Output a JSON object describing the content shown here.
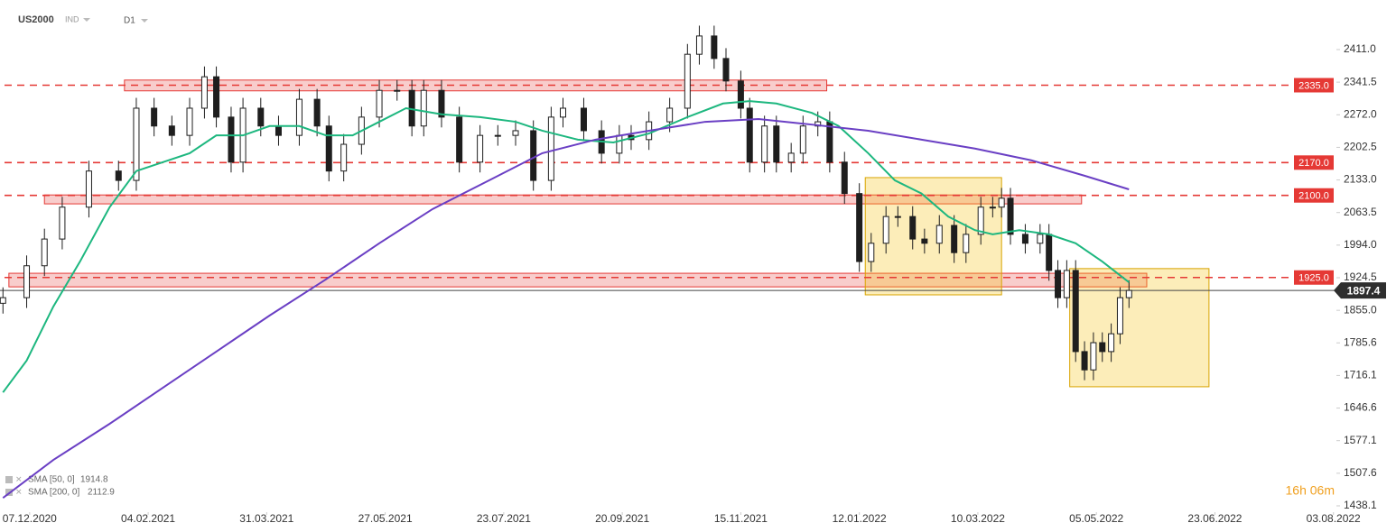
{
  "header": {
    "symbol": "US2000",
    "market": "IND",
    "interval": "D1",
    "countdown": "16h 06m"
  },
  "chart_data": {
    "type": "candlestick",
    "xlim": [
      -10,
      441
    ],
    "ylim": [
      1424.6,
      2516.7
    ],
    "xticks": [
      {
        "value": 0,
        "label": "07.12.2020"
      },
      {
        "value": 40,
        "label": "04.02.2021"
      },
      {
        "value": 80,
        "label": "31.03.2021"
      },
      {
        "value": 120,
        "label": "27.05.2021"
      },
      {
        "value": 160,
        "label": "23.07.2021"
      },
      {
        "value": 200,
        "label": "20.09.2021"
      },
      {
        "value": 240,
        "label": "15.11.2021"
      },
      {
        "value": 280,
        "label": "12.01.2022"
      },
      {
        "value": 320,
        "label": "10.03.2022"
      },
      {
        "value": 360,
        "label": "05.05.2022"
      },
      {
        "value": 400,
        "label": "23.06.2022"
      },
      {
        "value": 440,
        "label": "03.08.2022"
      }
    ],
    "yticks": [
      {
        "value": 2411.0,
        "label": "2411.0"
      },
      2341.5,
      {
        "value": 2272.0,
        "label": "2272.0"
      },
      2202.5,
      {
        "value": 2133.0,
        "label": "2133.0"
      },
      2063.5,
      {
        "value": 1994.0,
        "label": "1994.0"
      },
      1924.5,
      {
        "value": 1855.0,
        "label": "1855.0"
      },
      1785.6,
      1716.1,
      1646.6,
      1577.1,
      1507.6,
      1438.1
    ],
    "up_color": "#ffffff",
    "down_color": "#1e1e1e",
    "candles": {
      "x": [
        -9,
        -1,
        5,
        11,
        20,
        30,
        36,
        42,
        48,
        54,
        59,
        63,
        68,
        72,
        78,
        84,
        91,
        97,
        101,
        106,
        112,
        118,
        124,
        129,
        133,
        139,
        145,
        152,
        158,
        164,
        170,
        176,
        180,
        187,
        193,
        199,
        203,
        209,
        216,
        222,
        226,
        231,
        235,
        240,
        243,
        248,
        252,
        257,
        261,
        266,
        270,
        275,
        280,
        284,
        289,
        293,
        298,
        302,
        307,
        312,
        316,
        321,
        325,
        328,
        331,
        336,
        341,
        344,
        347,
        350,
        353,
        356,
        359,
        362,
        365,
        368,
        371
      ],
      "open": [
        1870,
        1882,
        1950,
        2007,
        2075,
        2152,
        2132,
        2286,
        2248,
        2228,
        2286,
        2353,
        2267,
        2171,
        2286,
        2248,
        2228,
        2305,
        2248,
        2152,
        2209,
        2267,
        2324,
        2324,
        2248,
        2324,
        2267,
        2171,
        2228,
        2228,
        2238,
        2132,
        2267,
        2286,
        2238,
        2190,
        2228,
        2219,
        2257,
        2286,
        2401,
        2440,
        2392,
        2344,
        2286,
        2171,
        2248,
        2171,
        2190,
        2248,
        2257,
        2171,
        2104,
        1959,
        1998,
        2055,
        2055,
        2007,
        1998,
        2036,
        1978,
        2017,
        2075,
        2075,
        2094,
        2017,
        1998,
        2017,
        1940,
        1882,
        1940,
        1767,
        1728,
        1786,
        1767,
        1805,
        1882
      ],
      "high": [
        1904,
        1972,
        2029,
        2097,
        2174,
        2174,
        2308,
        2308,
        2270,
        2308,
        2375,
        2375,
        2289,
        2308,
        2308,
        2270,
        2327,
        2327,
        2270,
        2231,
        2289,
        2346,
        2346,
        2346,
        2346,
        2346,
        2289,
        2250,
        2250,
        2260,
        2260,
        2289,
        2308,
        2308,
        2260,
        2250,
        2250,
        2279,
        2308,
        2423,
        2462,
        2462,
        2414,
        2366,
        2308,
        2270,
        2270,
        2212,
        2270,
        2279,
        2279,
        2193,
        2126,
        2020,
        2077,
        2077,
        2077,
        2029,
        2058,
        2058,
        2039,
        2097,
        2097,
        2116,
        2116,
        2039,
        2039,
        2039,
        1962,
        1962,
        1962,
        1789,
        1808,
        1808,
        1827,
        1904,
        1919
      ],
      "low": [
        1848,
        1860,
        1928,
        1985,
        2053,
        2110,
        2110,
        2226,
        2206,
        2206,
        2264,
        2245,
        2149,
        2149,
        2226,
        2206,
        2206,
        2226,
        2130,
        2130,
        2187,
        2245,
        2302,
        2226,
        2226,
        2245,
        2149,
        2149,
        2206,
        2206,
        2110,
        2110,
        2245,
        2216,
        2168,
        2168,
        2197,
        2197,
        2235,
        2264,
        2379,
        2370,
        2322,
        2264,
        2149,
        2149,
        2149,
        2149,
        2168,
        2226,
        2149,
        2082,
        1937,
        1937,
        1976,
        2033,
        1985,
        1976,
        1976,
        1956,
        1956,
        1995,
        2053,
        2053,
        1995,
        1976,
        1976,
        1918,
        1860,
        1860,
        1745,
        1706,
        1706,
        1745,
        1745,
        1783,
        1860
      ],
      "close": [
        1882,
        1950,
        2007,
        2075,
        2152,
        2132,
        2286,
        2248,
        2228,
        2286,
        2353,
        2267,
        2171,
        2286,
        2248,
        2228,
        2305,
        2248,
        2152,
        2209,
        2267,
        2324,
        2324,
        2248,
        2324,
        2267,
        2171,
        2228,
        2228,
        2238,
        2132,
        2267,
        2286,
        2238,
        2190,
        2228,
        2219,
        2257,
        2286,
        2401,
        2440,
        2392,
        2344,
        2286,
        2171,
        2248,
        2171,
        2190,
        2248,
        2257,
        2171,
        2104,
        1959,
        1998,
        2055,
        2055,
        2007,
        1998,
        2036,
        1978,
        2017,
        2075,
        2075,
        2094,
        2017,
        1998,
        2017,
        1940,
        1882,
        1940,
        1767,
        1728,
        1786,
        1767,
        1805,
        1882,
        1897.4
      ]
    },
    "series": [
      {
        "name": "SMA [50, 0]",
        "last": 1914.8,
        "color": "#1db77f",
        "x": [
          -9,
          -1,
          8,
          17,
          27,
          36,
          45,
          54,
          63,
          72,
          81,
          91,
          100,
          109,
          118,
          127,
          139,
          152,
          164,
          173,
          185,
          197,
          209,
          222,
          234,
          243,
          252,
          264,
          273,
          283,
          292,
          301,
          310,
          319,
          325,
          334,
          344,
          353,
          362,
          371
        ],
        "values": [
          1680,
          1748,
          1863,
          1959,
          2075,
          2152,
          2171,
          2190,
          2228,
          2228,
          2248,
          2248,
          2228,
          2228,
          2257,
          2286,
          2273,
          2267,
          2257,
          2238,
          2219,
          2213,
          2232,
          2267,
          2296,
          2301,
          2296,
          2276,
          2248,
          2190,
          2132,
          2104,
          2055,
          2026,
          2017,
          2026,
          2017,
          1998,
          1959,
          1914.8
        ]
      },
      {
        "name": "SMA [200, 0]",
        "last": 2112.9,
        "color": "#6a3fc4",
        "x": [
          -9,
          8,
          27,
          45,
          63,
          81,
          100,
          118,
          136,
          155,
          173,
          191,
          209,
          228,
          246,
          264,
          283,
          301,
          319,
          338,
          356,
          371
        ],
        "values": [
          1455,
          1536,
          1613,
          1690,
          1767,
          1844,
          1921,
          1998,
          2071,
          2132,
          2190,
          2219,
          2238,
          2257,
          2263,
          2251,
          2238,
          2219,
          2200,
          2175,
          2142,
          2112.9
        ]
      }
    ],
    "zones": [
      {
        "from": 32,
        "to": 269,
        "low": 2323,
        "high": 2346
      },
      {
        "from": 5,
        "to": 355,
        "low": 2082,
        "high": 2101
      },
      {
        "from": -7,
        "to": 377,
        "low": 1905,
        "high": 1934
      }
    ],
    "zone_color": "#e53935",
    "boxes": [
      {
        "from": 282,
        "to": 328,
        "low": 1888,
        "high": 2138
      },
      {
        "from": 351,
        "to": 398,
        "low": 1692,
        "high": 1944
      }
    ],
    "box_color": "#f5c518",
    "levels": [
      {
        "value": 2335.0,
        "label": "2335.0"
      },
      {
        "value": 2170.0,
        "label": "2170.0"
      },
      {
        "value": 2100.0,
        "label": "2100.0"
      },
      {
        "value": 1925.0,
        "label": "1925.0"
      }
    ],
    "level_color": "#e53935",
    "last_price": {
      "value": 1897.4,
      "label": "1897.4"
    }
  }
}
